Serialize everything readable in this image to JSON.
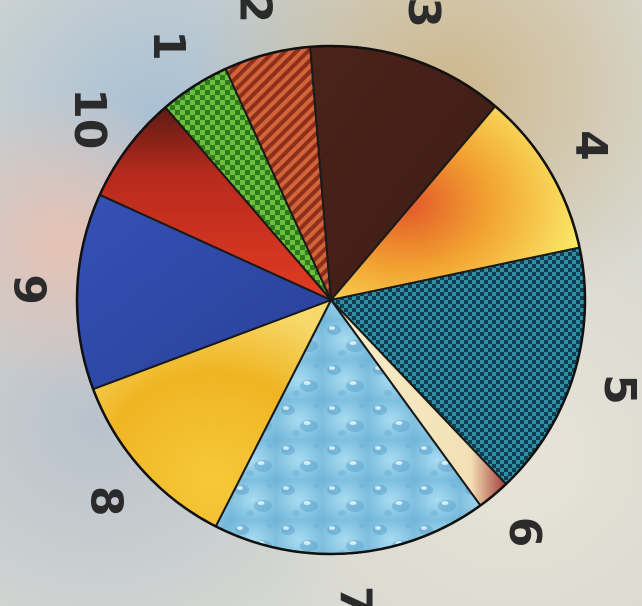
{
  "chart_data": {
    "type": "pie",
    "title": "",
    "categories": [
      "1",
      "2",
      "3",
      "4",
      "5",
      "6",
      "7",
      "8",
      "9",
      "10"
    ],
    "values": [
      4.5,
      5.5,
      12.5,
      10.5,
      16.2,
      2.1,
      17.5,
      11.8,
      12.5,
      6.9
    ],
    "colors": [
      "#3c8a24",
      "#b0452a",
      "#4a2219",
      "#f2b028",
      "#1d6a7a",
      "#f3e3b8",
      "#8ec9e6",
      "#f0b626",
      "#2f49a8",
      "#c92b1e"
    ],
    "fills": [
      "checkered",
      "diagonal-stripes",
      "solid",
      "radial-gradient",
      "checkered",
      "gradient",
      "water-droplet-texture",
      "radial-gradient",
      "solid",
      "gradient"
    ],
    "legend": false,
    "orientation": "rotated 90 degrees clockwise"
  }
}
